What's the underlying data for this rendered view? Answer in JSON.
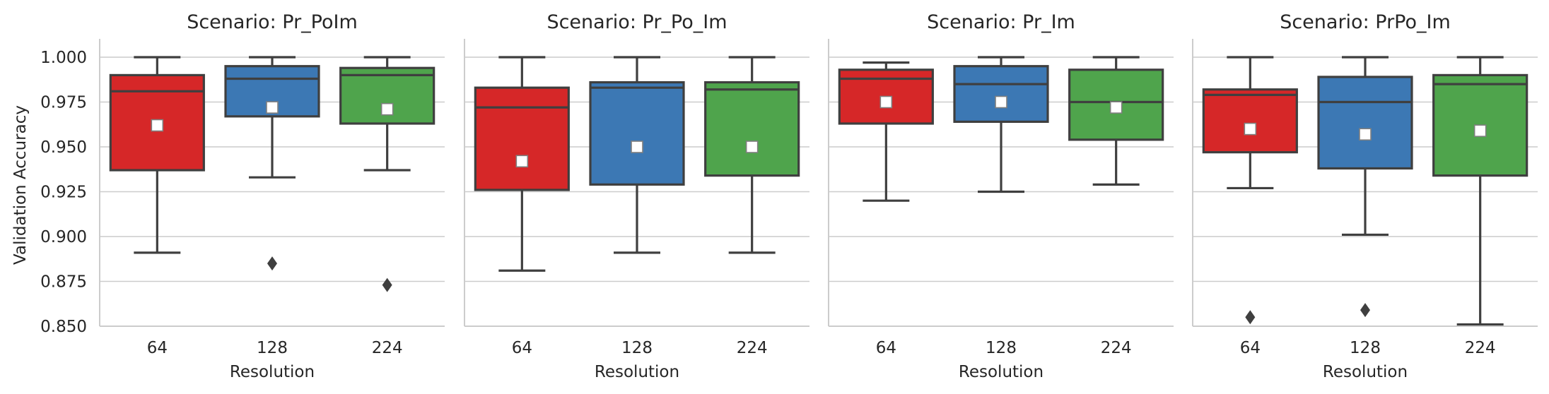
{
  "chart_data": {
    "type": "box",
    "ylabel": "Validation Accuracy",
    "xlabel": "Resolution",
    "ylim": [
      0.85,
      1.0
    ],
    "yticks": [
      "0.850",
      "0.875",
      "0.900",
      "0.925",
      "0.950",
      "0.975",
      "1.000"
    ],
    "categories": [
      "64",
      "128",
      "224"
    ],
    "colors": [
      "#d62728",
      "#3c78b4",
      "#4fa44c"
    ],
    "grid": "y",
    "shared_y": true,
    "panels": [
      {
        "title": "Scenario: Pr_PoIm",
        "boxes": [
          {
            "whislo": 0.891,
            "q1": 0.937,
            "med": 0.981,
            "q3": 0.99,
            "whishi": 1.0,
            "mean": 0.962,
            "fliers": []
          },
          {
            "whislo": 0.933,
            "q1": 0.967,
            "med": 0.988,
            "q3": 0.995,
            "whishi": 1.0,
            "mean": 0.972,
            "fliers": [
              0.885
            ]
          },
          {
            "whislo": 0.937,
            "q1": 0.963,
            "med": 0.99,
            "q3": 0.994,
            "whishi": 1.0,
            "mean": 0.971,
            "fliers": [
              0.873
            ]
          }
        ]
      },
      {
        "title": "Scenario: Pr_Po_Im",
        "boxes": [
          {
            "whislo": 0.881,
            "q1": 0.926,
            "med": 0.972,
            "q3": 0.983,
            "whishi": 1.0,
            "mean": 0.942,
            "fliers": []
          },
          {
            "whislo": 0.891,
            "q1": 0.929,
            "med": 0.983,
            "q3": 0.986,
            "whishi": 1.0,
            "mean": 0.95,
            "fliers": []
          },
          {
            "whislo": 0.891,
            "q1": 0.934,
            "med": 0.982,
            "q3": 0.986,
            "whishi": 1.0,
            "mean": 0.95,
            "fliers": []
          }
        ]
      },
      {
        "title": "Scenario: Pr_Im",
        "boxes": [
          {
            "whislo": 0.92,
            "q1": 0.963,
            "med": 0.988,
            "q3": 0.993,
            "whishi": 0.997,
            "mean": 0.975,
            "fliers": []
          },
          {
            "whislo": 0.925,
            "q1": 0.964,
            "med": 0.985,
            "q3": 0.995,
            "whishi": 1.0,
            "mean": 0.975,
            "fliers": []
          },
          {
            "whislo": 0.929,
            "q1": 0.954,
            "med": 0.975,
            "q3": 0.993,
            "whishi": 1.0,
            "mean": 0.972,
            "fliers": []
          }
        ]
      },
      {
        "title": "Scenario: PrPo_Im",
        "boxes": [
          {
            "whislo": 0.927,
            "q1": 0.947,
            "med": 0.979,
            "q3": 0.982,
            "whishi": 1.0,
            "mean": 0.96,
            "fliers": [
              0.855
            ]
          },
          {
            "whislo": 0.901,
            "q1": 0.938,
            "med": 0.975,
            "q3": 0.989,
            "whishi": 1.0,
            "mean": 0.957,
            "fliers": [
              0.859
            ]
          },
          {
            "whislo": 0.851,
            "q1": 0.934,
            "med": 0.985,
            "q3": 0.99,
            "whishi": 1.0,
            "mean": 0.959,
            "fliers": []
          }
        ]
      }
    ]
  }
}
